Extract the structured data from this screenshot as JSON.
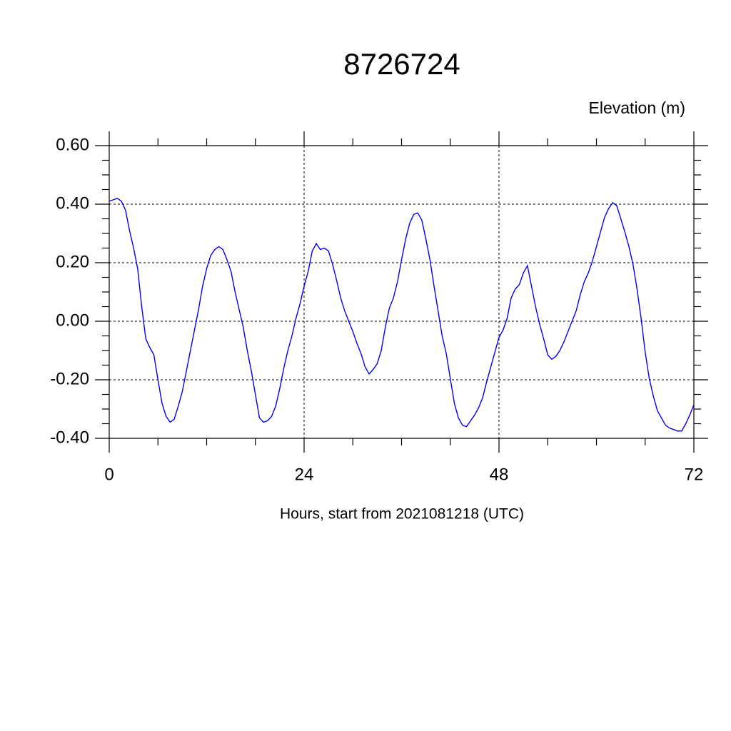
{
  "chart_data": {
    "type": "line",
    "title": "8726724",
    "y_axis_label": "Elevation (m)",
    "x_axis_label": "Hours, start from 2021081218 (UTC)",
    "x": [
      0,
      0.5,
      1,
      1.5,
      2,
      2.5,
      3,
      3.5,
      4,
      4.5,
      5,
      5.5,
      6,
      6.5,
      7,
      7.5,
      8,
      8.5,
      9,
      9.5,
      10,
      10.5,
      11,
      11.5,
      12,
      12.5,
      13,
      13.5,
      14,
      14.5,
      15,
      15.5,
      16,
      16.5,
      17,
      17.5,
      18,
      18.5,
      19,
      19.5,
      20,
      20.5,
      21,
      21.5,
      22,
      22.5,
      23,
      23.5,
      24,
      24.5,
      25,
      25.5,
      26,
      26.5,
      27,
      27.5,
      28,
      28.5,
      29,
      29.5,
      30,
      30.5,
      31,
      31.5,
      32,
      32.5,
      33,
      33.5,
      34,
      34.5,
      35,
      35.5,
      36,
      36.5,
      37,
      37.5,
      38,
      38.5,
      39,
      39.5,
      40,
      40.5,
      41,
      41.5,
      42,
      42.5,
      43,
      43.5,
      44,
      44.5,
      45,
      45.5,
      46,
      46.5,
      47,
      47.5,
      48,
      48.5,
      49,
      49.5,
      50,
      50.5,
      51,
      51.5,
      52,
      52.5,
      53,
      53.5,
      54,
      54.5,
      55,
      55.5,
      56,
      56.5,
      57,
      57.5,
      58,
      58.5,
      59,
      59.5,
      60,
      60.5,
      61,
      61.5,
      62,
      62.5,
      63,
      63.5,
      64,
      64.5,
      65,
      65.5,
      66,
      66.5,
      67,
      67.5,
      68,
      68.5,
      69,
      69.5,
      70,
      70.5,
      71,
      71.5,
      72
    ],
    "series": [
      {
        "color": "#0000ff",
        "values": [
          0.41,
          0.415,
          0.42,
          0.41,
          0.38,
          0.31,
          0.25,
          0.18,
          0.05,
          -0.06,
          -0.09,
          -0.115,
          -0.2,
          -0.28,
          -0.325,
          -0.345,
          -0.335,
          -0.29,
          -0.24,
          -0.17,
          -0.1,
          -0.03,
          0.04,
          0.12,
          0.18,
          0.225,
          0.245,
          0.255,
          0.245,
          0.21,
          0.17,
          0.1,
          0.04,
          -0.02,
          -0.1,
          -0.17,
          -0.25,
          -0.33,
          -0.345,
          -0.34,
          -0.325,
          -0.29,
          -0.23,
          -0.16,
          -0.1,
          -0.05,
          0.01,
          0.06,
          0.12,
          0.17,
          0.24,
          0.265,
          0.245,
          0.25,
          0.24,
          0.195,
          0.14,
          0.08,
          0.035,
          0.0,
          -0.035,
          -0.075,
          -0.11,
          -0.155,
          -0.18,
          -0.165,
          -0.145,
          -0.1,
          -0.02,
          0.045,
          0.08,
          0.135,
          0.21,
          0.28,
          0.335,
          0.365,
          0.37,
          0.345,
          0.28,
          0.21,
          0.12,
          0.035,
          -0.05,
          -0.11,
          -0.195,
          -0.28,
          -0.33,
          -0.355,
          -0.36,
          -0.34,
          -0.32,
          -0.295,
          -0.26,
          -0.205,
          -0.155,
          -0.105,
          -0.055,
          -0.03,
          0.01,
          0.08,
          0.11,
          0.125,
          0.165,
          0.19,
          0.12,
          0.05,
          -0.01,
          -0.06,
          -0.115,
          -0.13,
          -0.12,
          -0.1,
          -0.07,
          -0.035,
          0.0,
          0.035,
          0.09,
          0.135,
          0.165,
          0.205,
          0.255,
          0.305,
          0.355,
          0.385,
          0.405,
          0.395,
          0.35,
          0.305,
          0.255,
          0.195,
          0.11,
          0.01,
          -0.105,
          -0.195,
          -0.255,
          -0.305,
          -0.33,
          -0.355,
          -0.365,
          -0.37,
          -0.375,
          -0.375,
          -0.35,
          -0.32,
          -0.285
        ]
      }
    ],
    "xlim": [
      0,
      72
    ],
    "xticks": [
      0,
      24,
      48,
      72
    ],
    "ylim": [
      -0.4,
      0.6
    ],
    "yticks": [
      {
        "value": -0.4,
        "label": "-0.40"
      },
      {
        "value": -0.2,
        "label": "-0.20"
      },
      {
        "value": 0,
        "label": "0.00"
      },
      {
        "value": 0.2,
        "label": "0.20"
      },
      {
        "value": 0.4,
        "label": "0.40"
      },
      {
        "value": 0.6,
        "label": "0.60"
      }
    ],
    "grid": true
  }
}
